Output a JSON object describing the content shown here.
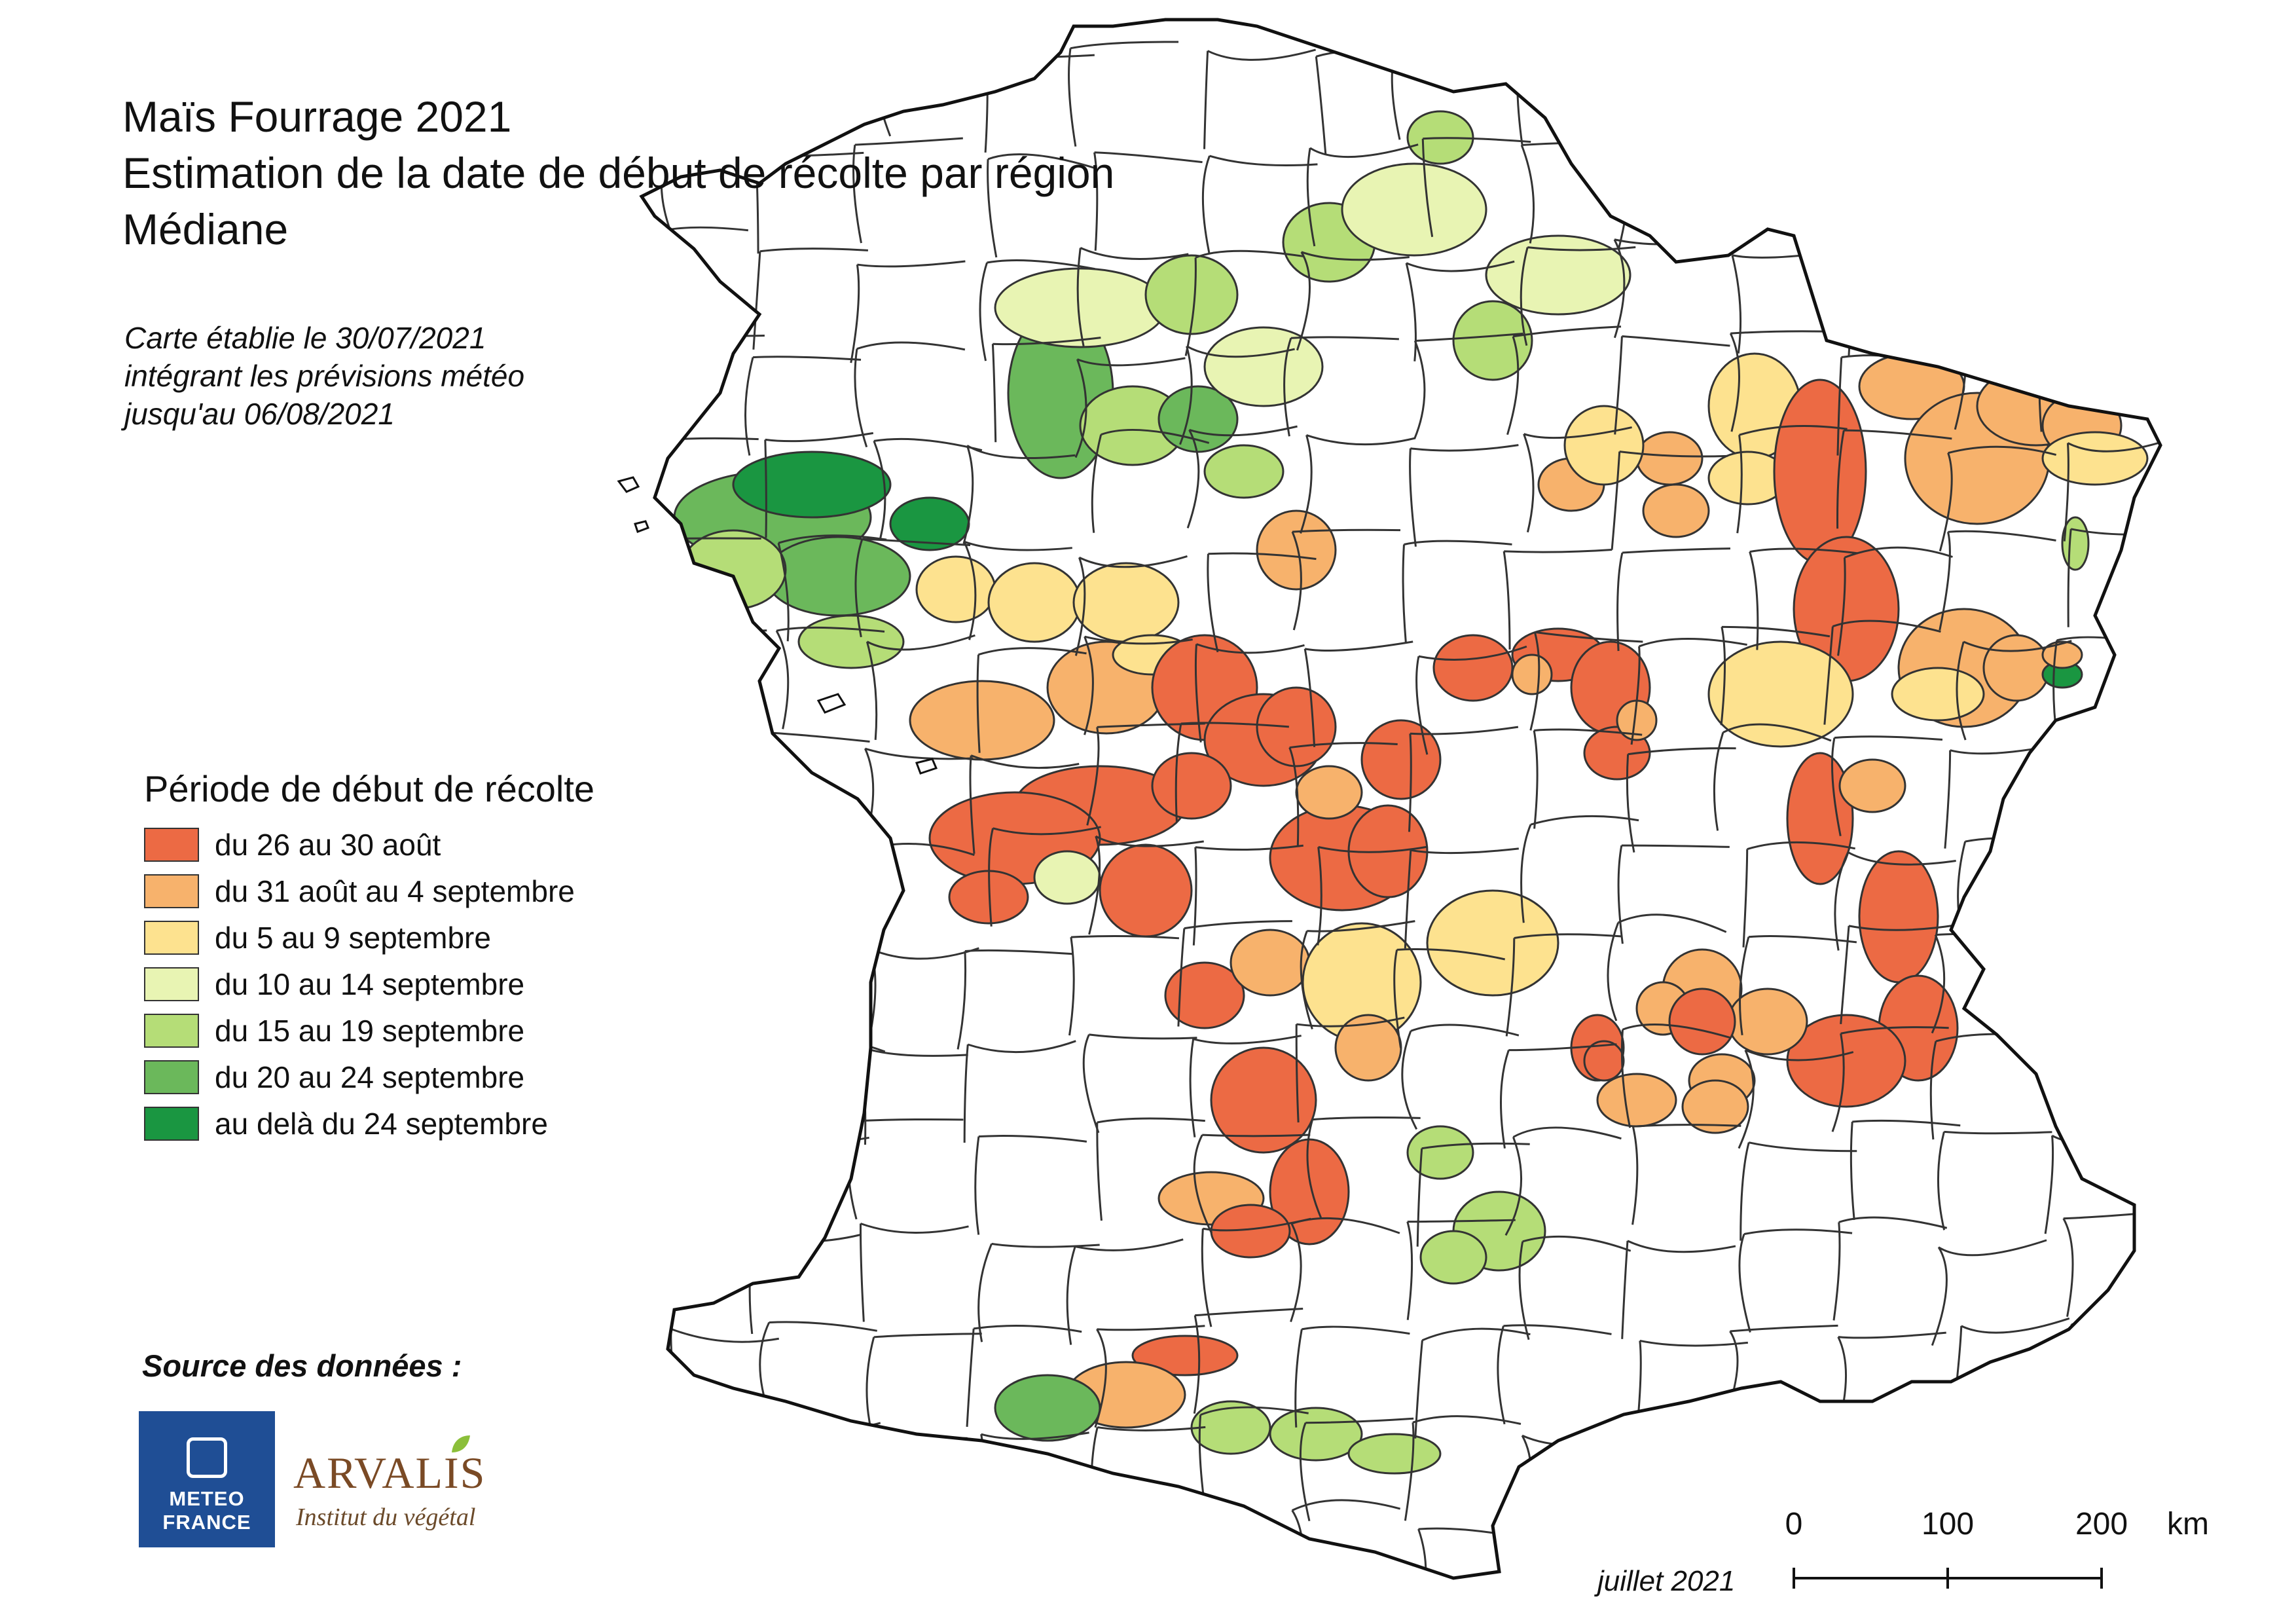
{
  "header": {
    "title_lines": [
      "Maïs Fourrage 2021",
      "Estimation de la date de début de récolte par région",
      "Médiane"
    ],
    "note_lines": [
      "Carte établie le 30/07/2021",
      "intégrant les prévisions météo",
      "jusqu'au 06/08/2021"
    ]
  },
  "legend": {
    "title": "Période de début de récolte",
    "items": [
      {
        "label": "du 26 au 30 août",
        "color": "#ec6a44"
      },
      {
        "label": "du 31 août au 4 septembre",
        "color": "#f7b26c"
      },
      {
        "label": "du 5 au 9 septembre",
        "color": "#fde28f"
      },
      {
        "label": "du 10 au 14 septembre",
        "color": "#e8f4b3"
      },
      {
        "label": "du 15 au 19 septembre",
        "color": "#b5dd77"
      },
      {
        "label": "du 20 au 24 septembre",
        "color": "#6bb85b"
      },
      {
        "label": "au delà du 24 septembre",
        "color": "#1a9641"
      }
    ]
  },
  "source": {
    "title": "Source des données :",
    "logos": [
      {
        "name": "meteo-france-logo",
        "text_lines": [
          "METEO",
          "FRANCE"
        ]
      },
      {
        "name": "arvalis-logo",
        "name_text": "ARVALIS",
        "subtitle": "Institut du végétal"
      }
    ]
  },
  "scale": {
    "labels": [
      "0",
      "100",
      "200"
    ],
    "unit": "km"
  },
  "date_label": "juillet 2021",
  "map": {
    "country": "France",
    "no_data_color": "#ffffff",
    "border_color": "#222222"
  }
}
